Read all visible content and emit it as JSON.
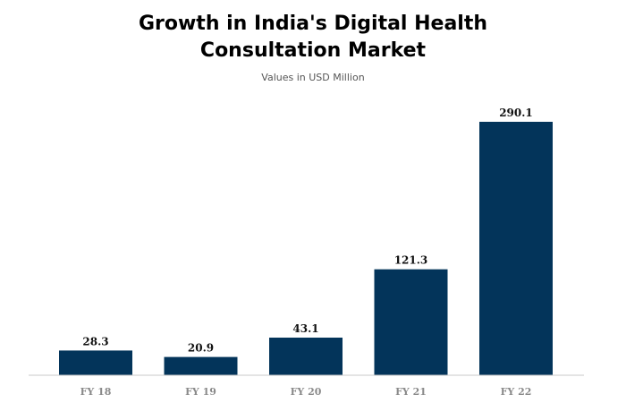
{
  "chart_data": {
    "type": "bar",
    "title": [
      "Growth in India's Digital Health",
      "Consultation Market"
    ],
    "subtitle": "Values in USD Million",
    "categories": [
      "FY 18",
      "FY 19",
      "FY 20",
      "FY 21",
      "FY 22"
    ],
    "values": [
      28.3,
      20.9,
      43.1,
      121.3,
      290.1
    ],
    "value_labels": [
      "28.3",
      "20.9",
      "43.1",
      "121.3",
      "290.1"
    ],
    "ylim": [
      0,
      290.1
    ],
    "grid": false,
    "legend": "none",
    "bar_color": "#03345a"
  }
}
